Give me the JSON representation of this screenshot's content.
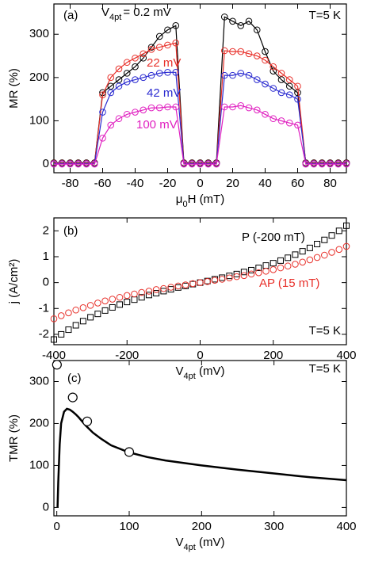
{
  "chart_data": [
    {
      "type": "line",
      "annotations": [
        {
          "text": "(a)"
        },
        {
          "text": "T=5 K"
        }
      ],
      "x_label": {
        "main": "μ",
        "sub": "0",
        "rest": "H (mT)"
      },
      "y_label": "MR (%)",
      "xlim": [
        -90,
        90
      ],
      "xticks": [
        -80,
        -60,
        -40,
        -20,
        0,
        20,
        40,
        60,
        80
      ],
      "ylim": [
        -20,
        370
      ],
      "yticks": [
        0,
        100,
        200,
        300
      ],
      "legend_prefix": {
        "main": "V",
        "sub": "4pt"
      },
      "x": [
        -90,
        -85,
        -80,
        -75,
        -70,
        -65,
        -60,
        -55,
        -50,
        -45,
        -40,
        -35,
        -30,
        -25,
        -20,
        -15,
        -10,
        -5,
        0,
        5,
        10,
        15,
        20,
        25,
        30,
        35,
        40,
        45,
        50,
        55,
        60,
        65,
        70,
        75,
        80,
        85,
        90
      ],
      "series": [
        {
          "name": "= 0.2 mV",
          "color": "#000000",
          "mode": "lines+markers",
          "marker": "circle",
          "values": [
            3,
            3,
            3,
            3,
            3,
            3,
            165,
            180,
            195,
            210,
            225,
            245,
            270,
            295,
            310,
            320,
            3,
            3,
            3,
            3,
            3,
            340,
            330,
            320,
            330,
            310,
            260,
            215,
            195,
            180,
            165,
            3,
            3,
            3,
            3,
            3,
            3
          ]
        },
        {
          "name": "22 mV",
          "color": "#e8302a",
          "mode": "lines+markers",
          "marker": "circle",
          "values": [
            2,
            2,
            2,
            2,
            2,
            2,
            160,
            200,
            220,
            235,
            245,
            255,
            265,
            270,
            275,
            280,
            2,
            2,
            2,
            2,
            2,
            262,
            260,
            260,
            255,
            250,
            240,
            225,
            210,
            195,
            180,
            2,
            2,
            2,
            2,
            2,
            2
          ]
        },
        {
          "name": "42 mV",
          "color": "#2a2ad0",
          "mode": "lines+markers",
          "marker": "circle",
          "values": [
            1,
            1,
            1,
            1,
            1,
            1,
            120,
            165,
            180,
            190,
            195,
            200,
            205,
            210,
            212,
            212,
            1,
            1,
            1,
            1,
            1,
            205,
            205,
            210,
            205,
            195,
            185,
            175,
            165,
            160,
            150,
            1,
            1,
            1,
            1,
            1,
            1
          ]
        },
        {
          "name": "100 mV",
          "color": "#e020c0",
          "mode": "lines+markers",
          "marker": "circle",
          "values": [
            0,
            0,
            0,
            0,
            0,
            0,
            60,
            90,
            105,
            115,
            120,
            125,
            130,
            130,
            132,
            132,
            0,
            0,
            0,
            0,
            0,
            132,
            132,
            135,
            130,
            125,
            115,
            105,
            100,
            95,
            90,
            0,
            0,
            0,
            0,
            0,
            0
          ]
        }
      ]
    },
    {
      "type": "scatter",
      "annotations": [
        {
          "text": "(b)"
        },
        {
          "text": "T=5 K"
        }
      ],
      "x_label": {
        "main": "V",
        "sub": "4pt",
        "rest": " (mV)"
      },
      "y_label": "j (A/cm²)",
      "xlim": [
        -400,
        400
      ],
      "xticks": [
        -400,
        -200,
        0,
        200,
        400
      ],
      "ylim": [
        -2.4,
        2.5
      ],
      "yticks": [
        -2,
        -1,
        0,
        1,
        2
      ],
      "x": [
        -400,
        -380,
        -360,
        -340,
        -320,
        -300,
        -280,
        -260,
        -240,
        -220,
        -200,
        -180,
        -160,
        -140,
        -120,
        -100,
        -80,
        -60,
        -40,
        -20,
        0,
        20,
        40,
        60,
        80,
        100,
        120,
        140,
        160,
        180,
        200,
        220,
        240,
        260,
        280,
        300,
        320,
        340,
        360,
        380,
        400
      ],
      "series": [
        {
          "name": "P (-200 mT)",
          "color": "#000000",
          "mode": "markers",
          "marker": "square",
          "values": [
            -2.2,
            -2.0,
            -1.82,
            -1.65,
            -1.49,
            -1.34,
            -1.21,
            -1.08,
            -0.96,
            -0.85,
            -0.75,
            -0.66,
            -0.57,
            -0.48,
            -0.41,
            -0.33,
            -0.26,
            -0.19,
            -0.13,
            -0.06,
            0,
            0.06,
            0.13,
            0.19,
            0.26,
            0.33,
            0.41,
            0.48,
            0.57,
            0.66,
            0.75,
            0.85,
            0.96,
            1.08,
            1.21,
            1.34,
            1.49,
            1.65,
            1.82,
            2.0,
            2.2
          ]
        },
        {
          "name": "AP (15 mT)",
          "color": "#e8302a",
          "mode": "markers",
          "marker": "circle",
          "values": [
            -1.4,
            -1.28,
            -1.17,
            -1.06,
            -0.97,
            -0.88,
            -0.79,
            -0.71,
            -0.64,
            -0.57,
            -0.5,
            -0.44,
            -0.38,
            -0.33,
            -0.27,
            -0.23,
            -0.18,
            -0.13,
            -0.09,
            -0.04,
            0,
            0.04,
            0.09,
            0.13,
            0.18,
            0.23,
            0.27,
            0.33,
            0.38,
            0.44,
            0.5,
            0.57,
            0.64,
            0.71,
            0.79,
            0.88,
            0.97,
            1.06,
            1.17,
            1.28,
            1.4
          ]
        }
      ]
    },
    {
      "type": "line",
      "annotations": [
        {
          "text": "(c)"
        },
        {
          "text": "T=5 K"
        }
      ],
      "x_label": {
        "main": "V",
        "sub": "4pt",
        "rest": " (mV)"
      },
      "y_label": "TMR (%)",
      "xlim": [
        -4,
        400
      ],
      "xticks": [
        0,
        100,
        200,
        300,
        400
      ],
      "ylim": [
        -20,
        350
      ],
      "yticks": [
        0,
        100,
        200,
        300
      ],
      "series": [
        {
          "color": "#000000",
          "mode": "lines",
          "x": [
            1,
            2,
            4,
            6,
            10,
            14,
            18,
            22,
            26,
            30,
            40,
            50,
            60,
            75,
            100,
            125,
            150,
            200,
            250,
            300,
            350,
            400
          ],
          "values": [
            0,
            60,
            150,
            200,
            228,
            235,
            233,
            228,
            222,
            215,
            195,
            178,
            165,
            148,
            131,
            120,
            112,
            100,
            90,
            81,
            72,
            65
          ]
        },
        {
          "color": "#000000",
          "mode": "markers",
          "marker": "circle-white",
          "x": [
            0.2,
            22,
            42,
            100
          ],
          "values": [
            340,
            262,
            205,
            132
          ]
        }
      ]
    }
  ]
}
